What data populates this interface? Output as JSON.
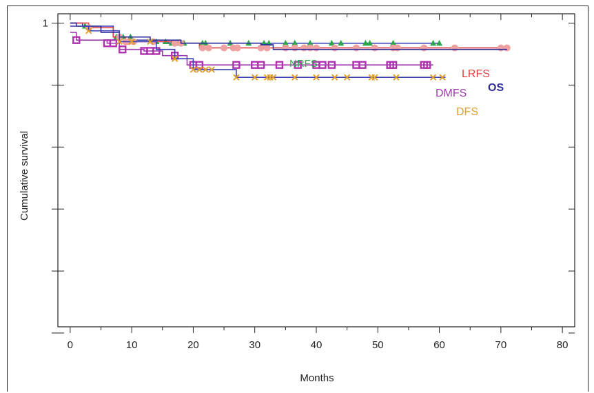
{
  "chart_data": {
    "type": "line",
    "subtype": "kaplan-meier",
    "title": "",
    "xlabel": "Months",
    "ylabel": "Cumulative survival",
    "xlim": [
      -2,
      82
    ],
    "ylim": [
      0.02,
      1.03
    ],
    "x_ticks": [
      0,
      10,
      20,
      30,
      40,
      50,
      60,
      70,
      80
    ],
    "y_ticks": [
      1
    ],
    "y_tick_labels": [
      "1"
    ],
    "grid": false,
    "legend": "inline labels at right end of curves",
    "colors": {
      "NRFS": "#2aa84a",
      "LRFS": "#e04040",
      "OS": "#3b3fb3",
      "DMFS": "#a03ab0",
      "DFS": "#e0a030",
      "LRFS_marker": "#f0a0a0",
      "DMFS_marker": "#b030b0",
      "axis": "#222222"
    },
    "series": [
      {
        "name": "NRFS",
        "color": "#2aa84a",
        "line_color": "#3b3fb3",
        "marker": "triangle",
        "steps": [
          [
            0,
            1.0
          ],
          [
            2,
            0.99
          ],
          [
            7,
            0.955
          ],
          [
            10,
            0.945
          ],
          [
            14,
            0.94
          ],
          [
            16,
            0.935
          ]
        ],
        "end": 60,
        "censored": [
          2.4,
          7.5,
          8,
          8.6,
          9.8,
          14,
          15.5,
          16.5,
          17.5,
          18.5,
          21.5,
          22,
          26,
          29,
          31.5,
          32.3,
          35,
          36.5,
          39,
          42.5,
          44,
          48,
          48.7,
          52.5,
          59,
          60
        ]
      },
      {
        "name": "LRFS",
        "color": "#e04040",
        "marker_color": "#f0a0a0",
        "marker": "circle",
        "steps": [
          [
            0,
            1.0
          ],
          [
            3,
            0.985
          ],
          [
            7,
            0.955
          ],
          [
            9,
            0.94
          ],
          [
            17,
            0.935
          ],
          [
            21,
            0.92
          ]
        ],
        "end": 71,
        "censored": [
          3,
          8,
          9,
          9.5,
          10.3,
          13.5,
          17,
          18,
          21.5,
          22.5,
          25,
          26.5,
          27.2,
          31,
          32,
          35,
          36.5,
          38,
          39,
          40,
          43,
          46.5,
          49.5,
          52.5,
          53.2,
          57.5,
          62.5,
          70,
          71
        ]
      },
      {
        "name": "OS",
        "color": "#2e2e9c",
        "steps": [
          [
            0,
            1.0
          ],
          [
            1,
            0.99
          ],
          [
            5,
            0.97
          ],
          [
            8,
            0.955
          ],
          [
            13,
            0.945
          ],
          [
            18,
            0.935
          ],
          [
            31,
            0.93
          ],
          [
            33,
            0.915
          ]
        ],
        "end": 71
      },
      {
        "name": "DMFS",
        "color": "#a03ab0",
        "marker_color": "#b030b0",
        "marker": "square",
        "steps": [
          [
            0,
            0.97
          ],
          [
            1,
            0.945
          ],
          [
            6,
            0.935
          ],
          [
            8,
            0.915
          ],
          [
            12,
            0.91
          ],
          [
            15,
            0.895
          ],
          [
            19,
            0.865
          ]
        ],
        "end": 59,
        "censored": [
          1,
          6,
          7,
          8.5,
          12,
          13,
          14,
          17,
          20,
          21,
          27,
          30,
          31,
          34,
          37,
          40,
          41,
          42.5,
          46.5,
          47.5,
          52,
          52.5,
          57.5,
          58
        ]
      },
      {
        "name": "DFS",
        "color": "#e0a030",
        "line_color": "#3b3fb3",
        "marker": "x",
        "steps": [
          [
            0,
            0.99
          ],
          [
            3,
            0.975
          ],
          [
            8,
            0.94
          ],
          [
            14,
            0.915
          ],
          [
            17,
            0.885
          ],
          [
            20,
            0.85
          ],
          [
            27,
            0.825
          ]
        ],
        "end": 61,
        "censored": [
          3,
          8,
          10,
          13,
          17,
          20,
          21,
          22,
          23,
          27,
          30,
          32,
          32.5,
          33,
          36.5,
          40,
          43,
          45,
          49,
          49.5,
          53,
          59,
          60.5
        ]
      }
    ],
    "labels": [
      "NRFS",
      "LRFS",
      "OS",
      "DMFS",
      "DFS"
    ]
  }
}
